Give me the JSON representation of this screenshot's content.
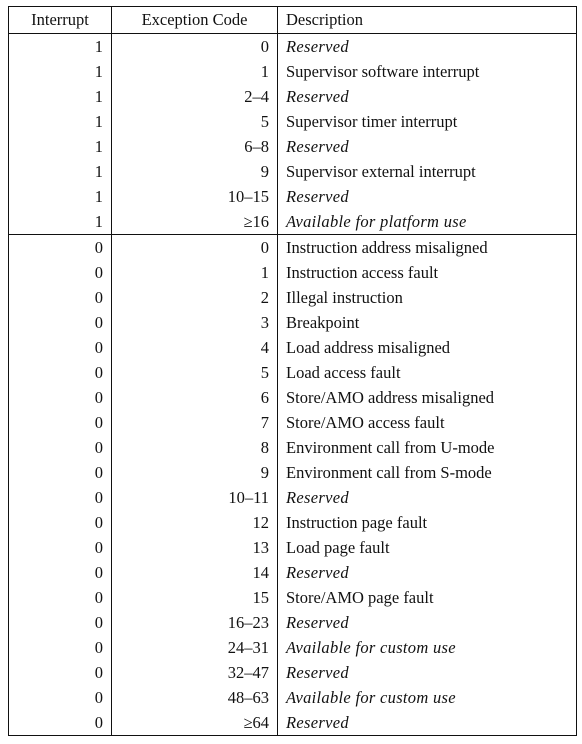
{
  "table": {
    "headers": [
      "Interrupt",
      "Exception Code",
      "Description"
    ],
    "interrupt_rows": [
      {
        "interrupt": "1",
        "code": "0",
        "description": "Reserved",
        "italic": true
      },
      {
        "interrupt": "1",
        "code": "1",
        "description": "Supervisor software interrupt",
        "italic": false
      },
      {
        "interrupt": "1",
        "code": "2–4",
        "description": "Reserved",
        "italic": true
      },
      {
        "interrupt": "1",
        "code": "5",
        "description": "Supervisor timer interrupt",
        "italic": false
      },
      {
        "interrupt": "1",
        "code": "6–8",
        "description": "Reserved",
        "italic": true
      },
      {
        "interrupt": "1",
        "code": "9",
        "description": "Supervisor external interrupt",
        "italic": false
      },
      {
        "interrupt": "1",
        "code": "10–15",
        "description": "Reserved",
        "italic": true
      },
      {
        "interrupt": "1",
        "code": "≥16",
        "description": "Available for platform use",
        "italic": true
      }
    ],
    "exception_rows": [
      {
        "interrupt": "0",
        "code": "0",
        "description": "Instruction address misaligned",
        "italic": false
      },
      {
        "interrupt": "0",
        "code": "1",
        "description": "Instruction access fault",
        "italic": false
      },
      {
        "interrupt": "0",
        "code": "2",
        "description": "Illegal instruction",
        "italic": false
      },
      {
        "interrupt": "0",
        "code": "3",
        "description": "Breakpoint",
        "italic": false
      },
      {
        "interrupt": "0",
        "code": "4",
        "description": "Load address misaligned",
        "italic": false
      },
      {
        "interrupt": "0",
        "code": "5",
        "description": "Load access fault",
        "italic": false
      },
      {
        "interrupt": "0",
        "code": "6",
        "description": "Store/AMO address misaligned",
        "italic": false
      },
      {
        "interrupt": "0",
        "code": "7",
        "description": "Store/AMO access fault",
        "italic": false
      },
      {
        "interrupt": "0",
        "code": "8",
        "description": "Environment call from U-mode",
        "italic": false
      },
      {
        "interrupt": "0",
        "code": "9",
        "description": "Environment call from S-mode",
        "italic": false
      },
      {
        "interrupt": "0",
        "code": "10–11",
        "description": "Reserved",
        "italic": true
      },
      {
        "interrupt": "0",
        "code": "12",
        "description": "Instruction page fault",
        "italic": false
      },
      {
        "interrupt": "0",
        "code": "13",
        "description": "Load page fault",
        "italic": false
      },
      {
        "interrupt": "0",
        "code": "14",
        "description": "Reserved",
        "italic": true
      },
      {
        "interrupt": "0",
        "code": "15",
        "description": "Store/AMO page fault",
        "italic": false
      },
      {
        "interrupt": "0",
        "code": "16–23",
        "description": "Reserved",
        "italic": true
      },
      {
        "interrupt": "0",
        "code": "24–31",
        "description": "Available for custom use",
        "italic": true
      },
      {
        "interrupt": "0",
        "code": "32–47",
        "description": "Reserved",
        "italic": true
      },
      {
        "interrupt": "0",
        "code": "48–63",
        "description": "Available for custom use",
        "italic": true
      },
      {
        "interrupt": "0",
        "code": "≥64",
        "description": "Reserved",
        "italic": true
      }
    ]
  }
}
